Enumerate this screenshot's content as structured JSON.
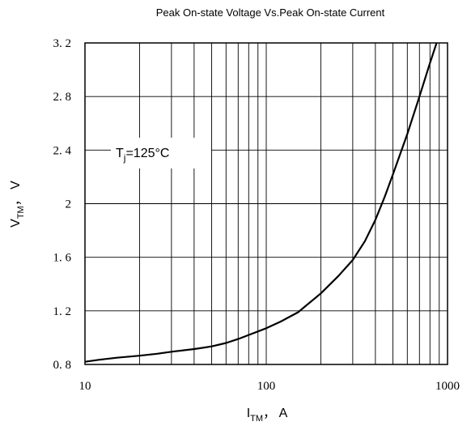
{
  "chart_data": {
    "type": "line",
    "title": "Peak On-state Voltage Vs.Peak On-state Current",
    "xlabel": {
      "main": "I",
      "sub": "TM",
      "rest": "， A"
    },
    "ylabel": {
      "main": "V",
      "sub": "TM",
      "rest": "， V"
    },
    "x_scale": "log",
    "xlim": [
      10,
      1000
    ],
    "ylim": [
      0.8,
      3.2
    ],
    "x_ticks": [
      10,
      100,
      1000
    ],
    "x_tick_labels": [
      "10",
      "100",
      "1000"
    ],
    "y_ticks": [
      0.8,
      1.2,
      1.6,
      2.0,
      2.4,
      2.8,
      3.2
    ],
    "y_tick_labels": [
      "0. 8",
      "1. 2",
      "1. 6",
      "2",
      "2. 4",
      "2. 8",
      "3. 2"
    ],
    "grid": true,
    "annotation": {
      "main": "T",
      "sub": "j",
      "rest": "=125°C"
    },
    "series": [
      {
        "x": [
          10,
          12,
          15,
          20,
          25,
          30,
          40,
          50,
          60,
          70,
          80,
          100,
          120,
          150,
          200,
          250,
          300,
          350,
          400,
          450,
          500,
          600,
          700,
          800,
          870
        ],
        "y": [
          0.82,
          0.835,
          0.85,
          0.865,
          0.88,
          0.895,
          0.915,
          0.935,
          0.96,
          0.99,
          1.02,
          1.07,
          1.12,
          1.19,
          1.33,
          1.46,
          1.58,
          1.72,
          1.88,
          2.05,
          2.22,
          2.52,
          2.8,
          3.05,
          3.2
        ]
      }
    ]
  }
}
